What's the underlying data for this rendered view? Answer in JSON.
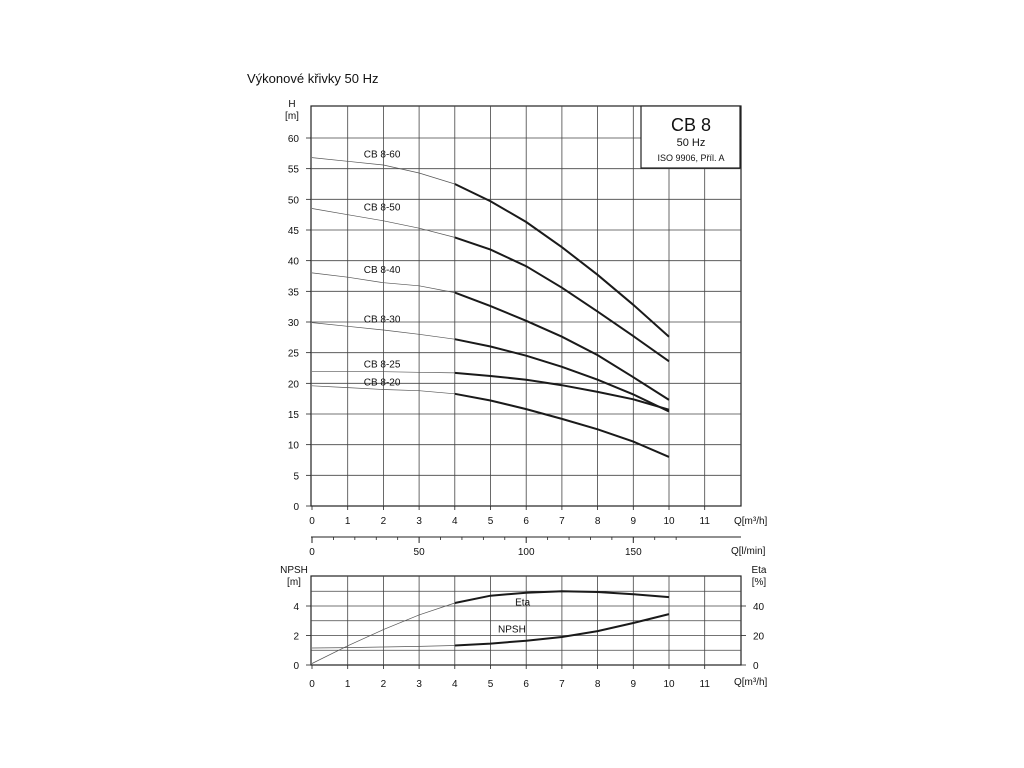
{
  "page": {
    "title": "Výkonové křivky 50 Hz"
  },
  "chart_data": [
    {
      "type": "line",
      "title": "CB 8",
      "subtitle": "50 Hz",
      "note": "ISO 9906, Příl. A",
      "ylabel_name": "H",
      "ylabel_unit": "[m]",
      "xlabel": "Q[m³/h]",
      "xlim": [
        0,
        12
      ],
      "ylim": [
        0,
        65
      ],
      "x_ticks": [
        "0",
        "1",
        "2",
        "3",
        "4",
        "5",
        "6",
        "7",
        "8",
        "9",
        "10",
        "11"
      ],
      "y_ticks": [
        "0",
        "5",
        "10",
        "15",
        "20",
        "25",
        "30",
        "35",
        "40",
        "45",
        "50",
        "55",
        "60"
      ],
      "secondary_x": {
        "label": "Q[l/min]",
        "ticks": [
          "0",
          "50",
          "100",
          "150"
        ]
      },
      "grid": true,
      "series": [
        {
          "name": "CB 8-60",
          "x": [
            0,
            1,
            2,
            3,
            4,
            5,
            6,
            7,
            8,
            9,
            10
          ],
          "y": [
            56.8,
            56.2,
            55.6,
            54.3,
            52.5,
            49.7,
            46.3,
            42.2,
            37.7,
            32.8,
            27.6
          ]
        },
        {
          "name": "CB 8-50",
          "x": [
            0,
            1,
            2,
            3,
            4,
            5,
            6,
            7,
            8,
            9,
            10
          ],
          "y": [
            48.5,
            47.5,
            46.5,
            45.3,
            43.8,
            41.8,
            39.1,
            35.6,
            31.7,
            27.7,
            23.6
          ]
        },
        {
          "name": "CB 8-40",
          "x": [
            0,
            1,
            2,
            3,
            4,
            5,
            6,
            7,
            8,
            9,
            10
          ],
          "y": [
            38.0,
            37.3,
            36.4,
            35.9,
            34.8,
            32.6,
            30.2,
            27.6,
            24.6,
            21.0,
            17.3
          ]
        },
        {
          "name": "CB 8-30",
          "x": [
            0,
            1,
            2,
            3,
            4,
            5,
            6,
            7,
            8,
            9,
            10
          ],
          "y": [
            29.9,
            29.3,
            28.7,
            28.0,
            27.2,
            26.0,
            24.5,
            22.7,
            20.6,
            18.2,
            15.4
          ]
        },
        {
          "name": "CB 8-25",
          "x": [
            0,
            1,
            2,
            3,
            4,
            5,
            6,
            7,
            8,
            9,
            10
          ],
          "y": [
            21.9,
            21.9,
            21.9,
            21.8,
            21.7,
            21.2,
            20.6,
            19.7,
            18.6,
            17.4,
            15.7
          ]
        },
        {
          "name": "CB 8-20",
          "x": [
            0,
            1,
            2,
            3,
            4,
            5,
            6,
            7,
            8,
            9,
            10
          ],
          "y": [
            19.6,
            19.3,
            19.0,
            18.8,
            18.3,
            17.2,
            15.8,
            14.2,
            12.5,
            10.5,
            8.0
          ]
        }
      ]
    },
    {
      "type": "line",
      "xlabel": "Q[m³/h]",
      "ylabel_left_name": "NPSH",
      "ylabel_left_unit": "[m]",
      "ylabel_right_name": "Eta",
      "ylabel_right_unit": "[%]",
      "xlim": [
        0,
        12
      ],
      "ylim_left": [
        0,
        6
      ],
      "ylim_right": [
        0,
        60
      ],
      "x_ticks": [
        "0",
        "1",
        "2",
        "3",
        "4",
        "5",
        "6",
        "7",
        "8",
        "9",
        "10",
        "11"
      ],
      "y_ticks_left": [
        "0",
        "2",
        "4"
      ],
      "y_ticks_right": [
        "0",
        "20",
        "40"
      ],
      "grid": true,
      "series": [
        {
          "name": "Eta",
          "axis": "right",
          "x": [
            0,
            1,
            2,
            3,
            4,
            5,
            6,
            7,
            8,
            9,
            10
          ],
          "y": [
            1,
            13,
            24,
            34,
            42,
            47,
            49,
            50,
            49.5,
            48,
            46
          ]
        },
        {
          "name": "NPSH",
          "axis": "left",
          "x": [
            0,
            1,
            2,
            3,
            4,
            5,
            6,
            7,
            8,
            9,
            10
          ],
          "y": [
            1.15,
            1.18,
            1.22,
            1.26,
            1.32,
            1.45,
            1.65,
            1.9,
            2.3,
            2.85,
            3.45
          ]
        }
      ]
    }
  ]
}
